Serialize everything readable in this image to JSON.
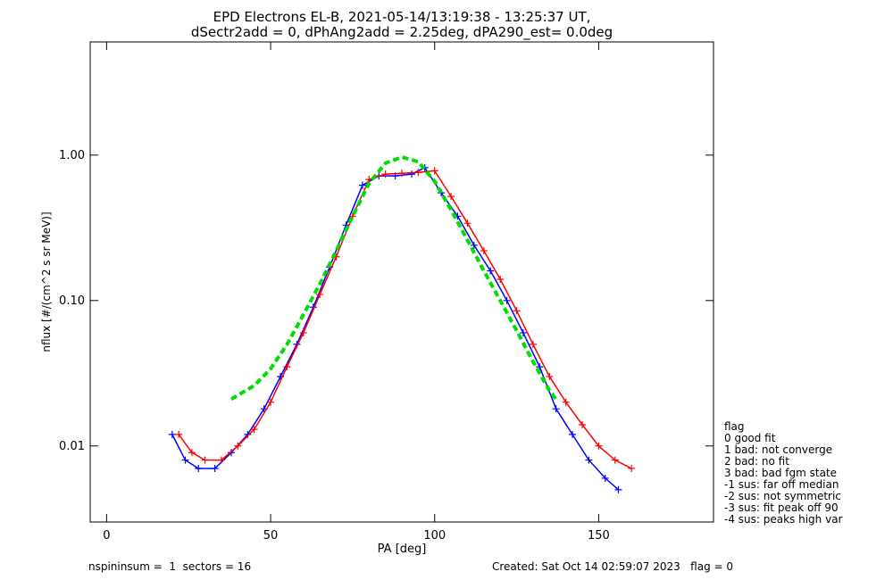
{
  "chart_data": {
    "type": "scatter",
    "title": "EPD Electrons EL-B, 2021-05-14/13:19:38 - 13:25:37 UT,",
    "subtitle": "dSectr2add = 0, dPhAng2add = 2.25deg, dPA290_est=    0.0deg",
    "xlabel": "PA [deg]",
    "ylabel": "nflux [#/(cm^2 s sr MeV)]",
    "xlim": [
      -5,
      185
    ],
    "ylim": [
      0.003,
      6.0
    ],
    "yscale": "log",
    "x_ticks": [
      0,
      50,
      100,
      150
    ],
    "x_tick_labels": [
      "0",
      "50",
      "100",
      "150"
    ],
    "y_ticks": [
      0.01,
      0.1,
      1.0
    ],
    "y_tick_labels": [
      "0.01",
      "0.10",
      "1.00"
    ],
    "series": [
      {
        "color": "#0000ff",
        "x": [
          20,
          24,
          28,
          33,
          38,
          43,
          48,
          53,
          58,
          63,
          68,
          73,
          78,
          83,
          88,
          93,
          97,
          102,
          107,
          112,
          117,
          122,
          127,
          132,
          137,
          142,
          147,
          152,
          156
        ],
        "y": [
          0.012,
          0.008,
          0.007,
          0.007,
          0.009,
          0.012,
          0.018,
          0.03,
          0.05,
          0.09,
          0.17,
          0.33,
          0.62,
          0.72,
          0.72,
          0.74,
          0.82,
          0.55,
          0.38,
          0.24,
          0.16,
          0.1,
          0.06,
          0.035,
          0.018,
          0.012,
          0.008,
          0.006,
          0.005
        ]
      },
      {
        "color": "#ff0000",
        "x": [
          22,
          26,
          30,
          35,
          40,
          45,
          50,
          55,
          60,
          65,
          70,
          75,
          80,
          85,
          90,
          95,
          100,
          105,
          110,
          115,
          120,
          125,
          130,
          135,
          140,
          145,
          150,
          155,
          160
        ],
        "y": [
          0.012,
          0.009,
          0.008,
          0.008,
          0.01,
          0.013,
          0.02,
          0.035,
          0.06,
          0.11,
          0.2,
          0.38,
          0.68,
          0.74,
          0.75,
          0.76,
          0.78,
          0.52,
          0.34,
          0.22,
          0.14,
          0.085,
          0.05,
          0.03,
          0.02,
          0.014,
          0.01,
          0.008,
          0.007
        ]
      },
      {
        "color": "#00dd00",
        "x": [
          38,
          45,
          50,
          55,
          60,
          65,
          70,
          75,
          80,
          85,
          90,
          95,
          100,
          105,
          110,
          115,
          120,
          125,
          130,
          135,
          137
        ],
        "y": [
          0.021,
          0.026,
          0.034,
          0.05,
          0.08,
          0.13,
          0.22,
          0.38,
          0.64,
          0.88,
          0.97,
          0.9,
          0.66,
          0.42,
          0.26,
          0.16,
          0.1,
          0.062,
          0.038,
          0.024,
          0.021
        ]
      }
    ],
    "legend": {
      "title": "flag",
      "position": "right, below plot",
      "entries": [
        " 0 good fit",
        " 1 bad: not converge",
        " 2 bad: no fit",
        " 3 bad: bad fgm state",
        "-1 sus: far off median",
        "-2 sus: not symmetric",
        "-3 sus: fit peak off 90",
        "-4 sus: peaks high var"
      ]
    }
  },
  "footer": {
    "left": "nspininsum =  1  sectors = 16",
    "right": "Created: Sat Oct 14 02:59:07 2023   flag = 0"
  }
}
